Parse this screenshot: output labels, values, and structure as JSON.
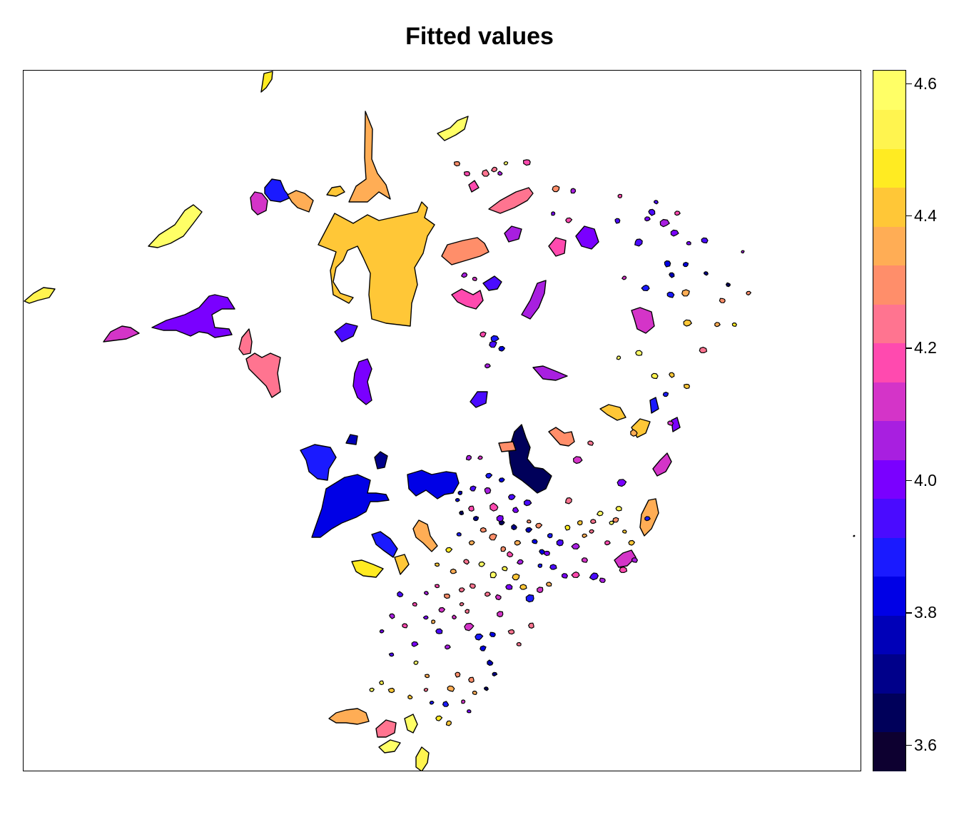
{
  "title": "Fitted values",
  "legend": {
    "range": [
      3.56,
      4.62
    ],
    "ticks": [
      {
        "value": 3.6,
        "label": "3.6"
      },
      {
        "value": 3.8,
        "label": "3.8"
      },
      {
        "value": 4.0,
        "label": "4.0"
      },
      {
        "value": 4.2,
        "label": "4.2"
      },
      {
        "value": 4.4,
        "label": "4.4"
      },
      {
        "value": 4.6,
        "label": "4.6"
      }
    ],
    "colors": [
      "#0D0030",
      "#00005A",
      "#00008A",
      "#0000B8",
      "#0000E6",
      "#1A1AFF",
      "#4A0BFF",
      "#7A00FF",
      "#A81FE0",
      "#D434C8",
      "#FF4AAF",
      "#FF7490",
      "#FF8E6A",
      "#FFAD55",
      "#FFC737",
      "#FFEB22",
      "#FFF44F",
      "#FFFF66"
    ]
  },
  "map": {
    "value_range": [
      3.56,
      4.62
    ],
    "regions": [
      {
        "value": 4.46,
        "name": "r1"
      },
      {
        "value": 4.4,
        "name": "r2"
      },
      {
        "value": 4.34,
        "name": "r3"
      },
      {
        "value": 4.25,
        "name": "r4"
      },
      {
        "value": 4.6,
        "name": "r5"
      },
      {
        "value": 4.58,
        "name": "r6"
      },
      {
        "value": 4.52,
        "name": "r7"
      },
      {
        "value": 4.42,
        "name": "r8"
      },
      {
        "value": 4.44,
        "name": "r9"
      },
      {
        "value": 3.9,
        "name": "r10"
      },
      {
        "value": 4.12,
        "name": "r11"
      },
      {
        "value": 4.38,
        "name": "r12"
      },
      {
        "value": 4.0,
        "name": "r13"
      },
      {
        "value": 4.14,
        "name": "r14"
      },
      {
        "value": 4.22,
        "name": "r15"
      },
      {
        "value": 4.26,
        "name": "r16"
      },
      {
        "value": 4.24,
        "name": "r17"
      },
      {
        "value": 4.28,
        "name": "r18"
      },
      {
        "value": 4.2,
        "name": "r19"
      },
      {
        "value": 4.06,
        "name": "r20"
      },
      {
        "value": 4.18,
        "name": "r21"
      },
      {
        "value": 3.92,
        "name": "r22"
      },
      {
        "value": 4.08,
        "name": "r23"
      },
      {
        "value": 4.16,
        "name": "r24"
      },
      {
        "value": 4.02,
        "name": "r25"
      },
      {
        "value": 3.96,
        "name": "r26"
      },
      {
        "value": 3.98,
        "name": "r27"
      },
      {
        "value": 3.94,
        "name": "r28"
      },
      {
        "value": 4.04,
        "name": "r29"
      },
      {
        "value": 4.1,
        "name": "r30"
      },
      {
        "value": 3.86,
        "name": "r31"
      },
      {
        "value": 3.84,
        "name": "r32"
      },
      {
        "value": 3.8,
        "name": "r33"
      },
      {
        "value": 3.76,
        "name": "r34"
      },
      {
        "value": 3.7,
        "name": "r35"
      },
      {
        "value": 3.66,
        "name": "r36"
      },
      {
        "value": 4.3,
        "name": "r37"
      },
      {
        "value": 4.32,
        "name": "r38"
      },
      {
        "value": 4.36,
        "name": "r39"
      },
      {
        "value": 3.88,
        "name": "r40"
      }
    ]
  }
}
